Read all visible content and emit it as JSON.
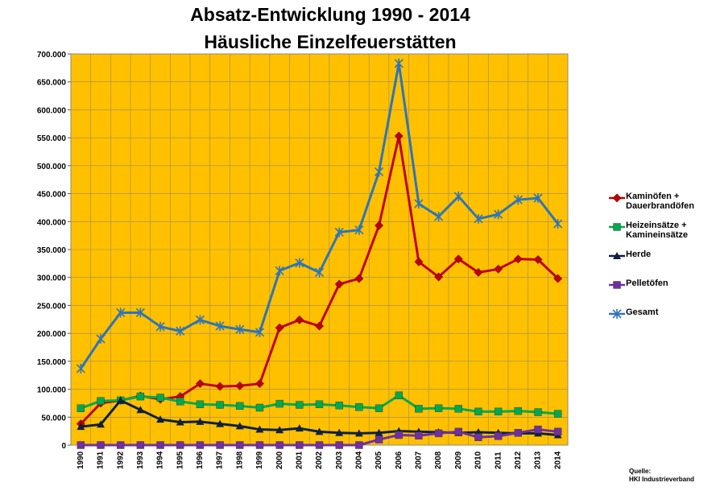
{
  "title_line1": "Absatz-Entwicklung 1990 - 2014",
  "title_line2": "Häusliche Einzelfeuerstätten",
  "source_label": "Quelle:",
  "source_name": "HKI Industrieverband",
  "colors": {
    "plot_background": "#FFC000",
    "kaminoefen": "#C00000",
    "heizeinsaetze": "#00A850",
    "herde": "#0D2040",
    "pelletoefen": "#7030A0",
    "gesamt": "#2E75B6"
  },
  "chart_data": {
    "type": "line",
    "title": "Absatz-Entwicklung 1990 - 2014 Häusliche Einzelfeuerstätten",
    "xlabel": "",
    "ylabel": "",
    "ylim": [
      0,
      700000
    ],
    "yticks": [
      "0",
      "50.000",
      "100.000",
      "150.000",
      "200.000",
      "250.000",
      "300.000",
      "350.000",
      "400.000",
      "450.000",
      "500.000",
      "550.000",
      "600.000",
      "650.000",
      "700.000"
    ],
    "grid": true,
    "legend_position": "right",
    "x": [
      "1990",
      "1991",
      "1992",
      "1993",
      "1994",
      "1995",
      "1996",
      "1997",
      "1998",
      "1999",
      "2000",
      "2001",
      "2002",
      "2003",
      "2004",
      "2005",
      "2006",
      "2007",
      "2008",
      "2009",
      "2010",
      "2011",
      "2012",
      "2013",
      "2014"
    ],
    "series": [
      {
        "name": "Kaminöfen + Dauerbrandöfen",
        "marker": "diamond",
        "values": [
          38000,
          75000,
          80000,
          88000,
          82000,
          87000,
          110000,
          105000,
          106000,
          110000,
          210000,
          224000,
          213000,
          288000,
          298000,
          393000,
          553000,
          328000,
          301000,
          333000,
          309000,
          315000,
          333000,
          332000,
          298000
        ]
      },
      {
        "name": "Heizeinsätze + Kamineinsätze",
        "marker": "square",
        "values": [
          66000,
          79000,
          80000,
          87000,
          85000,
          78000,
          73000,
          72000,
          70000,
          67000,
          74000,
          72000,
          73000,
          71000,
          68000,
          66000,
          89000,
          65000,
          66000,
          65000,
          60000,
          60000,
          61000,
          59000,
          56000
        ]
      },
      {
        "name": "Herde",
        "marker": "triangle",
        "values": [
          33000,
          37000,
          80000,
          63000,
          46000,
          41000,
          42000,
          38000,
          34000,
          28000,
          27000,
          30000,
          24000,
          22000,
          21000,
          22000,
          25000,
          24000,
          23000,
          22000,
          23000,
          22000,
          21000,
          21000,
          18000
        ]
      },
      {
        "name": "Pelletöfen",
        "marker": "square",
        "values": [
          0,
          0,
          0,
          0,
          0,
          0,
          0,
          0,
          0,
          0,
          0,
          0,
          0,
          0,
          0,
          10000,
          18000,
          17000,
          21000,
          24000,
          14000,
          16000,
          22000,
          28000,
          24000
        ]
      },
      {
        "name": "Gesamt",
        "marker": "star",
        "values": [
          137000,
          190000,
          237000,
          237000,
          212000,
          204000,
          224000,
          213000,
          207000,
          202000,
          312000,
          326000,
          309000,
          381000,
          385000,
          489000,
          683000,
          432000,
          409000,
          445000,
          405000,
          413000,
          439000,
          442000,
          396000
        ]
      }
    ]
  }
}
